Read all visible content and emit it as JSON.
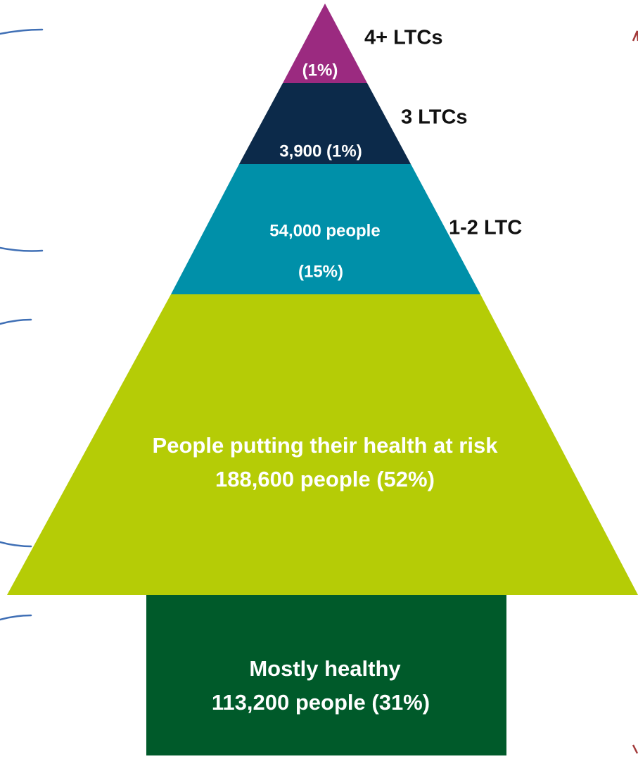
{
  "tiers": [
    {
      "side_label": "4+ LTCs",
      "lines": [
        "(1%)"
      ]
    },
    {
      "side_label": "3 LTCs",
      "lines": [
        "3,900 (1%)"
      ]
    },
    {
      "side_label": "1-2 LTC",
      "lines": [
        "54,000 people",
        "(15%)"
      ]
    },
    {
      "lines": [
        "People putting their health at risk",
        "188,600 people (52%)"
      ]
    },
    {
      "lines": [
        "Mostly healthy",
        "113,200 people (31%)"
      ]
    }
  ]
}
